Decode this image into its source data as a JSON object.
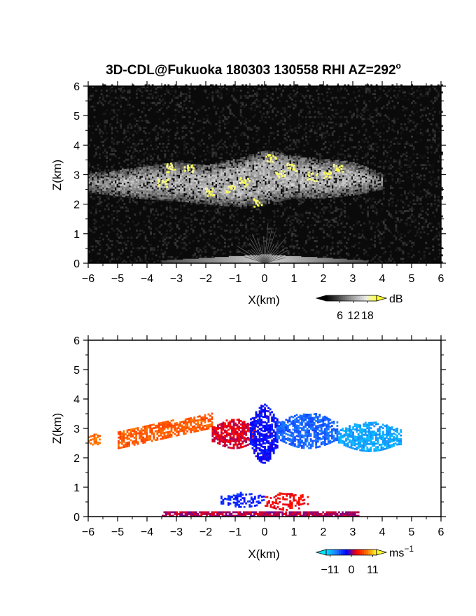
{
  "title": {
    "main": "3D-CDL@Fukuoka 180303 130558 RHI AZ=292",
    "sup": "o"
  },
  "chart_data": [
    {
      "type": "heatmap",
      "name": "reflectivity",
      "xlabel": "X(km)",
      "ylabel": "Z(km)",
      "xlim": [
        -6,
        6
      ],
      "ylim": [
        0,
        6
      ],
      "xticks": [
        "-6",
        "-5",
        "-4",
        "-3",
        "-2",
        "-1",
        "0",
        "1",
        "2",
        "3",
        "4",
        "5",
        "6"
      ],
      "yticks": [
        "0",
        "1",
        "2",
        "3",
        "4",
        "5",
        "6"
      ],
      "background": "#0a0a0a",
      "colorbar": {
        "unit": "dB",
        "unit_sup": "",
        "ticks": [
          "6",
          "12",
          "18"
        ],
        "tick_values": [
          6,
          12,
          18
        ],
        "range": [
          0,
          22
        ],
        "colors": [
          "#000000",
          "#3a3a3a",
          "#7a7a7a",
          "#b5b5b5",
          "#ececec",
          "#ffff33"
        ]
      },
      "features": [
        {
          "desc": "cloud layer",
          "x": [
            -6,
            -4.5,
            -3,
            -2,
            -1,
            0,
            1,
            2,
            3,
            4
          ],
          "z_bottom": [
            2.4,
            2.2,
            2.1,
            2.0,
            1.9,
            2.0,
            2.2,
            2.2,
            2.3,
            2.5
          ],
          "z_top": [
            3.0,
            3.2,
            3.4,
            3.3,
            3.5,
            3.8,
            3.6,
            3.5,
            3.4,
            3.0
          ],
          "level_db": 11
        },
        {
          "desc": "bright cores",
          "points": [
            [
              -3.5,
              2.7
            ],
            [
              -3.2,
              3.2
            ],
            [
              -2.6,
              3.2
            ],
            [
              -1.9,
              2.4
            ],
            [
              -1.2,
              2.5
            ],
            [
              -0.7,
              2.7
            ],
            [
              -0.3,
              2.0
            ],
            [
              0.2,
              3.5
            ],
            [
              0.5,
              3.0
            ],
            [
              0.9,
              3.2
            ],
            [
              1.6,
              2.9
            ],
            [
              2.1,
              3.0
            ],
            [
              2.5,
              3.2
            ]
          ],
          "level_db": 19
        },
        {
          "desc": "near-ground clutter",
          "x_center": 0,
          "half_width_km": 3.5,
          "z_max": 0.2,
          "level_db": 14
        }
      ]
    },
    {
      "type": "heatmap",
      "name": "doppler velocity",
      "xlabel": "X(km)",
      "ylabel": "Z(km)",
      "xlim": [
        -6,
        6
      ],
      "ylim": [
        0,
        6
      ],
      "xticks": [
        "-6",
        "-5",
        "-4",
        "-3",
        "-2",
        "-1",
        "0",
        "1",
        "2",
        "3",
        "4",
        "5",
        "6"
      ],
      "yticks": [
        "0",
        "1",
        "2",
        "3",
        "4",
        "5",
        "6"
      ],
      "background": "#ffffff",
      "colorbar": {
        "unit": "ms",
        "unit_sup": "-1",
        "ticks": [
          "-11",
          "0",
          "11"
        ],
        "tick_values": [
          -11,
          0,
          11
        ],
        "range": [
          -13,
          13
        ],
        "colors": [
          "#00e5ff",
          "#1e78ff",
          "#0000ff",
          "#ff0000",
          "#ff6a00",
          "#ffff33"
        ]
      },
      "features": [
        {
          "desc": "far west cloud",
          "x": [
            -6.0,
            -5.6
          ],
          "z": [
            2.4,
            2.8
          ],
          "velocity": 8
        },
        {
          "desc": "west cloud arc",
          "x": [
            -5.0,
            -1.8
          ],
          "z_bottom": [
            2.3,
            3.0
          ],
          "z_top": [
            2.9,
            3.5
          ],
          "velocity": 7
        },
        {
          "desc": "red core",
          "x": [
            -1.8,
            -0.3
          ],
          "z": [
            2.3,
            3.3
          ],
          "velocity": 2
        },
        {
          "desc": "blue column",
          "x": [
            -0.5,
            0.4
          ],
          "z": [
            1.8,
            3.8
          ],
          "velocity": -3
        },
        {
          "desc": "east blue cloud",
          "x": [
            0.4,
            2.5
          ],
          "z": [
            2.3,
            3.5
          ],
          "velocity": -7
        },
        {
          "desc": "east cyan cloud",
          "x": [
            2.5,
            4.6
          ],
          "z": [
            2.2,
            3.2
          ],
          "velocity": -10
        },
        {
          "desc": "low west blue",
          "x": [
            -1.5,
            0.0
          ],
          "z": [
            0.3,
            0.8
          ],
          "velocity": -4
        },
        {
          "desc": "low east red",
          "x": [
            0.0,
            1.5
          ],
          "z": [
            0.2,
            0.8
          ],
          "velocity": 3
        },
        {
          "desc": "ground band",
          "x": [
            -3.5,
            3.2
          ],
          "z": [
            0.0,
            0.15
          ],
          "velocity": 1
        }
      ]
    }
  ]
}
